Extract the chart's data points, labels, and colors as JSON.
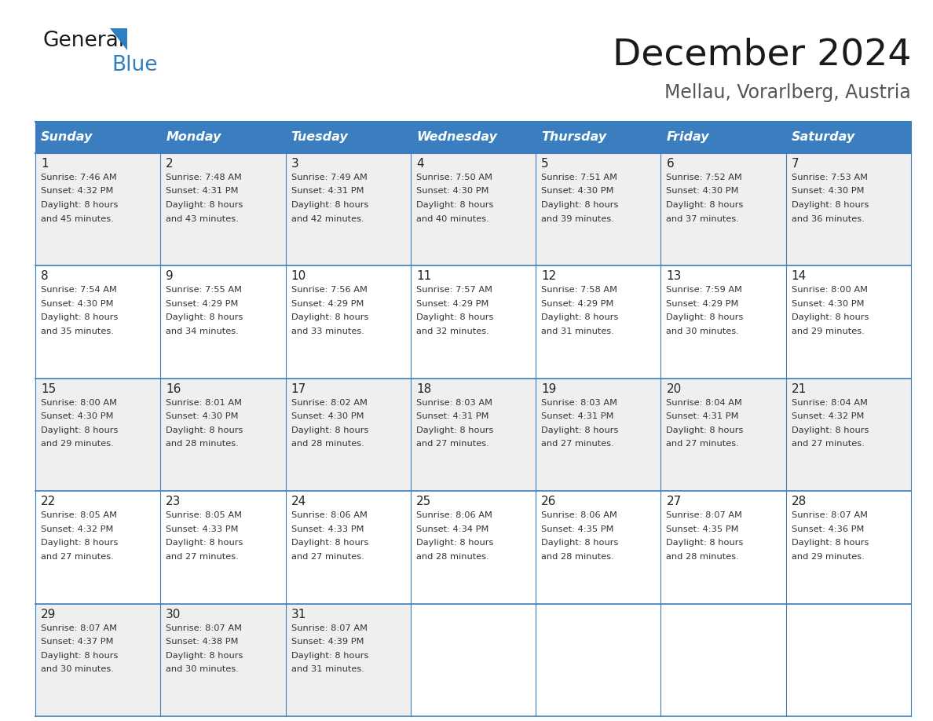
{
  "title": "December 2024",
  "subtitle": "Mellau, Vorarlberg, Austria",
  "header_bg": "#3a7ebf",
  "header_text_color": "#ffffff",
  "cell_bg_odd": "#efefef",
  "cell_bg_even": "#ffffff",
  "border_color": "#3a7ebf",
  "day_names": [
    "Sunday",
    "Monday",
    "Tuesday",
    "Wednesday",
    "Thursday",
    "Friday",
    "Saturday"
  ],
  "days": [
    {
      "date": 1,
      "col": 0,
      "row": 0,
      "sunrise": "7:46 AM",
      "sunset": "4:32 PM",
      "daylight_min": "45"
    },
    {
      "date": 2,
      "col": 1,
      "row": 0,
      "sunrise": "7:48 AM",
      "sunset": "4:31 PM",
      "daylight_min": "43"
    },
    {
      "date": 3,
      "col": 2,
      "row": 0,
      "sunrise": "7:49 AM",
      "sunset": "4:31 PM",
      "daylight_min": "42"
    },
    {
      "date": 4,
      "col": 3,
      "row": 0,
      "sunrise": "7:50 AM",
      "sunset": "4:30 PM",
      "daylight_min": "40"
    },
    {
      "date": 5,
      "col": 4,
      "row": 0,
      "sunrise": "7:51 AM",
      "sunset": "4:30 PM",
      "daylight_min": "39"
    },
    {
      "date": 6,
      "col": 5,
      "row": 0,
      "sunrise": "7:52 AM",
      "sunset": "4:30 PM",
      "daylight_min": "37"
    },
    {
      "date": 7,
      "col": 6,
      "row": 0,
      "sunrise": "7:53 AM",
      "sunset": "4:30 PM",
      "daylight_min": "36"
    },
    {
      "date": 8,
      "col": 0,
      "row": 1,
      "sunrise": "7:54 AM",
      "sunset": "4:30 PM",
      "daylight_min": "35"
    },
    {
      "date": 9,
      "col": 1,
      "row": 1,
      "sunrise": "7:55 AM",
      "sunset": "4:29 PM",
      "daylight_min": "34"
    },
    {
      "date": 10,
      "col": 2,
      "row": 1,
      "sunrise": "7:56 AM",
      "sunset": "4:29 PM",
      "daylight_min": "33"
    },
    {
      "date": 11,
      "col": 3,
      "row": 1,
      "sunrise": "7:57 AM",
      "sunset": "4:29 PM",
      "daylight_min": "32"
    },
    {
      "date": 12,
      "col": 4,
      "row": 1,
      "sunrise": "7:58 AM",
      "sunset": "4:29 PM",
      "daylight_min": "31"
    },
    {
      "date": 13,
      "col": 5,
      "row": 1,
      "sunrise": "7:59 AM",
      "sunset": "4:29 PM",
      "daylight_min": "30"
    },
    {
      "date": 14,
      "col": 6,
      "row": 1,
      "sunrise": "8:00 AM",
      "sunset": "4:30 PM",
      "daylight_min": "29"
    },
    {
      "date": 15,
      "col": 0,
      "row": 2,
      "sunrise": "8:00 AM",
      "sunset": "4:30 PM",
      "daylight_min": "29"
    },
    {
      "date": 16,
      "col": 1,
      "row": 2,
      "sunrise": "8:01 AM",
      "sunset": "4:30 PM",
      "daylight_min": "28"
    },
    {
      "date": 17,
      "col": 2,
      "row": 2,
      "sunrise": "8:02 AM",
      "sunset": "4:30 PM",
      "daylight_min": "28"
    },
    {
      "date": 18,
      "col": 3,
      "row": 2,
      "sunrise": "8:03 AM",
      "sunset": "4:31 PM",
      "daylight_min": "27"
    },
    {
      "date": 19,
      "col": 4,
      "row": 2,
      "sunrise": "8:03 AM",
      "sunset": "4:31 PM",
      "daylight_min": "27"
    },
    {
      "date": 20,
      "col": 5,
      "row": 2,
      "sunrise": "8:04 AM",
      "sunset": "4:31 PM",
      "daylight_min": "27"
    },
    {
      "date": 21,
      "col": 6,
      "row": 2,
      "sunrise": "8:04 AM",
      "sunset": "4:32 PM",
      "daylight_min": "27"
    },
    {
      "date": 22,
      "col": 0,
      "row": 3,
      "sunrise": "8:05 AM",
      "sunset": "4:32 PM",
      "daylight_min": "27"
    },
    {
      "date": 23,
      "col": 1,
      "row": 3,
      "sunrise": "8:05 AM",
      "sunset": "4:33 PM",
      "daylight_min": "27"
    },
    {
      "date": 24,
      "col": 2,
      "row": 3,
      "sunrise": "8:06 AM",
      "sunset": "4:33 PM",
      "daylight_min": "27"
    },
    {
      "date": 25,
      "col": 3,
      "row": 3,
      "sunrise": "8:06 AM",
      "sunset": "4:34 PM",
      "daylight_min": "28"
    },
    {
      "date": 26,
      "col": 4,
      "row": 3,
      "sunrise": "8:06 AM",
      "sunset": "4:35 PM",
      "daylight_min": "28"
    },
    {
      "date": 27,
      "col": 5,
      "row": 3,
      "sunrise": "8:07 AM",
      "sunset": "4:35 PM",
      "daylight_min": "28"
    },
    {
      "date": 28,
      "col": 6,
      "row": 3,
      "sunrise": "8:07 AM",
      "sunset": "4:36 PM",
      "daylight_min": "29"
    },
    {
      "date": 29,
      "col": 0,
      "row": 4,
      "sunrise": "8:07 AM",
      "sunset": "4:37 PM",
      "daylight_min": "30"
    },
    {
      "date": 30,
      "col": 1,
      "row": 4,
      "sunrise": "8:07 AM",
      "sunset": "4:38 PM",
      "daylight_min": "30"
    },
    {
      "date": 31,
      "col": 2,
      "row": 4,
      "sunrise": "8:07 AM",
      "sunset": "4:39 PM",
      "daylight_min": "31"
    }
  ],
  "logo_color1": "#1a1a1a",
  "logo_color2": "#2b7fc2",
  "logo_triangle_color": "#2b7fc2",
  "title_color": "#1a1a1a",
  "subtitle_color": "#555555"
}
